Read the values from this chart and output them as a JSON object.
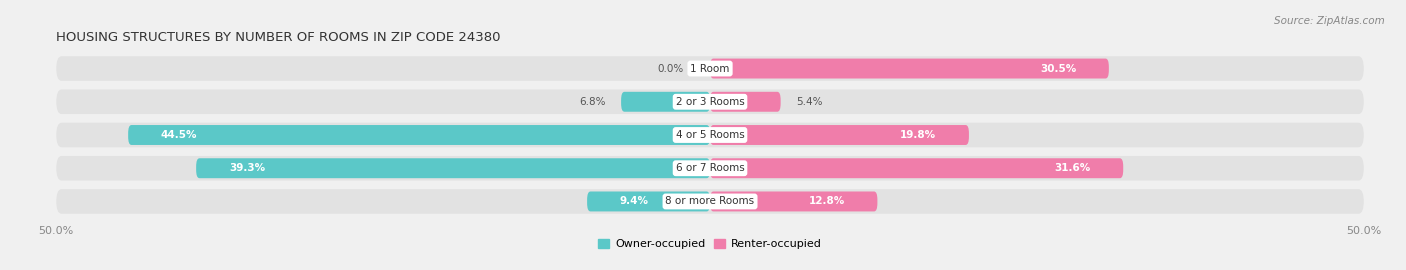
{
  "title": "HOUSING STRUCTURES BY NUMBER OF ROOMS IN ZIP CODE 24380",
  "source": "Source: ZipAtlas.com",
  "categories": [
    "1 Room",
    "2 or 3 Rooms",
    "4 or 5 Rooms",
    "6 or 7 Rooms",
    "8 or more Rooms"
  ],
  "owner_values": [
    0.0,
    6.8,
    44.5,
    39.3,
    9.4
  ],
  "renter_values": [
    30.5,
    5.4,
    19.8,
    31.6,
    12.8
  ],
  "owner_color": "#5bc8c8",
  "renter_color": "#f07daa",
  "axis_limit": 50.0,
  "background_color": "#f0f0f0",
  "bar_background": "#e2e2e2",
  "bar_height": 0.6,
  "title_fontsize": 9.5,
  "source_fontsize": 7.5,
  "tick_fontsize": 8,
  "label_fontsize": 7.5,
  "category_fontsize": 7.5,
  "legend_fontsize": 8
}
